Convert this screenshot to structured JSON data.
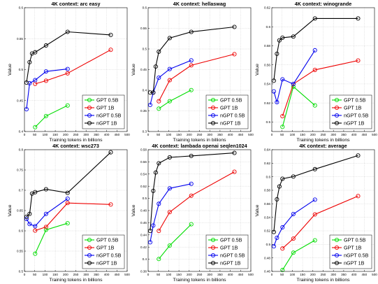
{
  "chart_data": [
    {
      "type": "line",
      "title": "4K context:  arc easy",
      "xlabel": "Training tokens in billions",
      "ylabel": "Value",
      "xlim": [
        0,
        500
      ],
      "ylim": [
        0.4,
        0.6
      ],
      "xticks": [
        0,
        50,
        100,
        150,
        200,
        250,
        300,
        350,
        400,
        450,
        500
      ],
      "yticks": [
        0.4,
        0.45,
        0.5,
        0.55,
        0.6
      ],
      "ytick_labels": [
        "0.4",
        "0.45",
        "0.5",
        "0.55",
        "0.6"
      ],
      "grid": true,
      "legend_position": "bottom-right",
      "series": [
        {
          "name": "GPT 0.5B",
          "color": "#00dd00",
          "x": [
            52,
            105,
            210
          ],
          "y": [
            0.407,
            0.425,
            0.442
          ]
        },
        {
          "name": "GPT 1B",
          "color": "#ee0000",
          "x": [
            52,
            105,
            210,
            420
          ],
          "y": [
            0.477,
            0.482,
            0.494,
            0.532
          ]
        },
        {
          "name": "nGPT 0.5B",
          "color": "#0000ee",
          "x": [
            10,
            25,
            52,
            105,
            210
          ],
          "y": [
            0.436,
            0.478,
            0.483,
            0.497,
            0.501
          ]
        },
        {
          "name": "nGPT 1B",
          "color": "#000000",
          "x": [
            10,
            25,
            37,
            52,
            105,
            210,
            420
          ],
          "y": [
            0.479,
            0.512,
            0.526,
            0.528,
            0.539,
            0.561,
            0.556
          ]
        }
      ]
    },
    {
      "type": "line",
      "title": "4K context:  hellaswag",
      "xlabel": "Training tokens in billions",
      "ylabel": "Value",
      "xlim": [
        0,
        500
      ],
      "ylim": [
        0.3,
        0.6
      ],
      "xticks": [
        0,
        50,
        100,
        150,
        200,
        250,
        300,
        350,
        400,
        450,
        500
      ],
      "yticks": [
        0.3,
        0.35,
        0.4,
        0.45,
        0.5,
        0.55,
        0.6
      ],
      "ytick_labels": [
        "0.3",
        "0.35",
        "0.4",
        "0.45",
        "0.5",
        "0.55",
        "0.6"
      ],
      "grid": true,
      "legend_position": "bottom-right",
      "series": [
        {
          "name": "GPT 0.5B",
          "color": "#00dd00",
          "x": [
            52,
            105,
            210
          ],
          "y": [
            0.3554,
            0.3734,
            0.4004
          ]
        },
        {
          "name": "GPT 1B",
          "color": "#ee0000",
          "x": [
            52,
            105,
            210,
            420
          ],
          "y": [
            0.3734,
            0.4244,
            0.4604,
            0.4874
          ]
        },
        {
          "name": "nGPT 0.5B",
          "color": "#0000ee",
          "x": [
            10,
            25,
            52,
            105,
            210
          ],
          "y": [
            0.3644,
            0.3944,
            0.4304,
            0.4514,
            0.4724
          ]
        },
        {
          "name": "nGPT 1B",
          "color": "#000000",
          "x": [
            10,
            25,
            37,
            52,
            105,
            210,
            420
          ],
          "y": [
            0.3944,
            0.3944,
            0.4574,
            0.4934,
            0.5264,
            0.5414,
            0.5534
          ]
        }
      ]
    },
    {
      "type": "line",
      "title": "4K context:  winogrande",
      "xlabel": "Training tokens in billions",
      "ylabel": "Value",
      "xlim": [
        0,
        500
      ],
      "ylim": [
        0.49,
        0.62
      ],
      "xticks": [
        0,
        50,
        100,
        150,
        200,
        250,
        300,
        350,
        400,
        450,
        500
      ],
      "yticks": [
        0.5,
        0.52,
        0.54,
        0.56,
        0.58,
        0.6,
        0.62
      ],
      "ytick_labels": [
        "0.5",
        "0.52",
        "0.54",
        "0.56",
        "0.58",
        "0.6",
        "0.62"
      ],
      "grid": true,
      "legend_position": "bottom-right",
      "series": [
        {
          "name": "GPT 0.5B",
          "color": "#00dd00",
          "x": [
            52,
            105,
            210
          ],
          "y": [
            0.4949,
            0.5371,
            0.5174
          ]
        },
        {
          "name": "GPT 1B",
          "color": "#ee0000",
          "x": [
            52,
            105,
            210,
            420
          ],
          "y": [
            0.5061,
            0.5399,
            0.5547,
            0.5645
          ]
        },
        {
          "name": "nGPT 0.5B",
          "color": "#0000ee",
          "x": [
            10,
            25,
            52,
            105,
            210
          ],
          "y": [
            0.5321,
            0.5208,
            0.5448,
            0.5399,
            0.5753
          ]
        },
        {
          "name": "nGPT 1B",
          "color": "#000000",
          "x": [
            10,
            25,
            37,
            52,
            105,
            210,
            420
          ],
          "y": [
            0.5434,
            0.5716,
            0.5857,
            0.5885,
            0.5897,
            0.6087,
            0.6087
          ]
        }
      ]
    },
    {
      "type": "line",
      "title": "4K context:  wsc273",
      "xlabel": "Training tokens in billions",
      "ylabel": "Value",
      "xlim": [
        0,
        500
      ],
      "ylim": [
        0.5,
        0.8
      ],
      "xticks": [
        0,
        50,
        100,
        150,
        200,
        250,
        300,
        350,
        400,
        450,
        500
      ],
      "yticks": [
        0.5,
        0.55,
        0.6,
        0.65,
        0.7,
        0.75,
        0.8
      ],
      "ytick_labels": [
        "0.5",
        "0.55",
        "0.6",
        "0.65",
        "0.7",
        "0.75",
        "0.8"
      ],
      "grid": true,
      "legend_position": "bottom-right",
      "series": [
        {
          "name": "GPT 0.5B",
          "color": "#00dd00",
          "x": [
            52,
            105,
            210
          ],
          "y": [
            0.5436,
            0.6025,
            0.6186
          ]
        },
        {
          "name": "GPT 1B",
          "color": "#ee0000",
          "x": [
            52,
            105,
            210,
            420
          ],
          "y": [
            0.6007,
            0.6096,
            0.6686,
            0.665
          ]
        },
        {
          "name": "nGPT 0.5B",
          "color": "#0000ee",
          "x": [
            10,
            25,
            52,
            105,
            210
          ],
          "y": [
            0.6293,
            0.6168,
            0.6114,
            0.6418,
            0.6793
          ]
        },
        {
          "name": "nGPT 1B",
          "color": "#000000",
          "x": [
            10,
            25,
            37,
            52,
            105,
            210,
            420
          ],
          "y": [
            0.6346,
            0.6418,
            0.6918,
            0.6954,
            0.7025,
            0.6936,
            0.7936
          ]
        }
      ]
    },
    {
      "type": "line",
      "title": "4K context:  lambada openai seqlen1024",
      "xlabel": "Training tokens in billions",
      "ylabel": "Value",
      "xlim": [
        0,
        500
      ],
      "ylim": [
        0.38,
        0.58
      ],
      "xticks": [
        0,
        50,
        100,
        150,
        200,
        250,
        300,
        350,
        400,
        450,
        500
      ],
      "yticks": [
        0.38,
        0.4,
        0.42,
        0.44,
        0.46,
        0.48,
        0.5,
        0.52,
        0.54,
        0.56,
        0.58
      ],
      "ytick_labels": [
        "0.38",
        "0.4",
        "0.42",
        "0.44",
        "0.46",
        "0.48",
        "0.5",
        "0.52",
        "0.54",
        "0.56",
        "0.58"
      ],
      "grid": true,
      "legend_position": "bottom-right",
      "series": [
        {
          "name": "GPT 0.5B",
          "color": "#00dd00",
          "x": [
            52,
            105,
            210
          ],
          "y": [
            0.4004,
            0.4225,
            0.4575
          ]
        },
        {
          "name": "GPT 1B",
          "color": "#ee0000",
          "x": [
            52,
            105,
            210,
            420
          ],
          "y": [
            0.4466,
            0.4775,
            0.5044,
            0.5437
          ]
        },
        {
          "name": "nGPT 0.5B",
          "color": "#0000ee",
          "x": [
            10,
            25,
            52,
            105,
            210
          ],
          "y": [
            0.4279,
            0.4554,
            0.4911,
            0.5164,
            0.5239
          ]
        },
        {
          "name": "nGPT 1B",
          "color": "#000000",
          "x": [
            10,
            25,
            37,
            52,
            105,
            210,
            420
          ],
          "y": [
            0.4466,
            0.5123,
            0.5425,
            0.5577,
            0.5674,
            0.5698,
            0.5747
          ]
        }
      ]
    },
    {
      "type": "line",
      "title": "4K context:  average",
      "xlabel": "Training tokens in billions",
      "ylabel": "Value",
      "xlim": [
        0,
        500
      ],
      "ylim": [
        0.46,
        0.64
      ],
      "xticks": [
        0,
        50,
        100,
        150,
        200,
        250,
        300,
        350,
        400,
        450,
        500
      ],
      "yticks": [
        0.46,
        0.48,
        0.5,
        0.52,
        0.54,
        0.56,
        0.58,
        0.6,
        0.62,
        0.64
      ],
      "ytick_labels": [
        "0.46",
        "0.48",
        "0.5",
        "0.52",
        "0.54",
        "0.56",
        "0.58",
        "0.6",
        "0.62",
        "0.64"
      ],
      "grid": true,
      "legend_position": "bottom-right",
      "series": [
        {
          "name": "GPT 0.5B",
          "color": "#00dd00",
          "x": [
            52,
            105,
            210
          ],
          "y": [
            0.4621,
            0.4877,
            0.506
          ]
        },
        {
          "name": "GPT 1B",
          "color": "#ee0000",
          "x": [
            52,
            105,
            210,
            420
          ],
          "y": [
            0.4939,
            0.5085,
            0.5443,
            0.5714
          ]
        },
        {
          "name": "nGPT 0.5B",
          "color": "#0000ee",
          "x": [
            10,
            25,
            52,
            105,
            210
          ],
          "y": [
            0.4971,
            0.5097,
            0.5252,
            0.5448,
            0.5661
          ]
        },
        {
          "name": "nGPT 1B",
          "color": "#000000",
          "x": [
            10,
            25,
            37,
            52,
            105,
            210,
            420
          ],
          "y": [
            0.5183,
            0.5666,
            0.5856,
            0.597,
            0.6003,
            0.6112,
            0.6314
          ]
        }
      ]
    }
  ]
}
